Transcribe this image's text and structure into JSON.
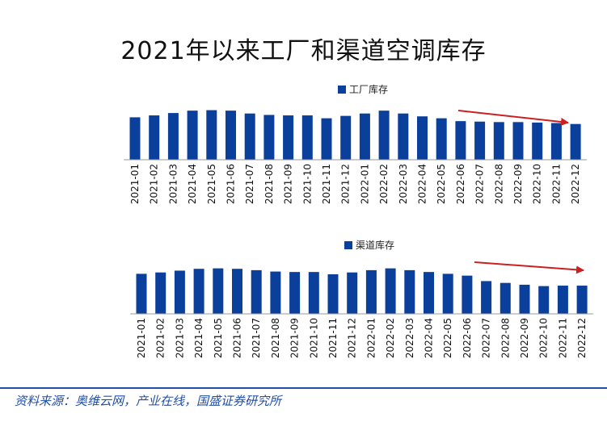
{
  "title": "2021年以来工厂和渠道空调库存",
  "source": "资料来源：奥维云网，产业在线，国盛证券研究所",
  "colors": {
    "bar": "#0b3f9c",
    "arrow": "#cc1f1f",
    "footer": "#1f4ea6"
  },
  "chart_data": [
    {
      "type": "bar",
      "title": "",
      "legend": [
        "工厂库存"
      ],
      "legend_position": "top-center",
      "grid": false,
      "categories": [
        "2021-01",
        "2021-02",
        "2021-03",
        "2021-04",
        "2021-05",
        "2021-06",
        "2021-07",
        "2021-08",
        "2021-09",
        "2021-10",
        "2021-11",
        "2021-12",
        "2022-01",
        "2022-02",
        "2022-03",
        "2022-04",
        "2022-05",
        "2022-06",
        "2022-07",
        "2022-08",
        "2022-09",
        "2022-10",
        "2022-11",
        "2022-12"
      ],
      "series": [
        {
          "name": "工厂库存",
          "values": [
            89,
            93,
            98,
            103,
            104,
            103,
            97,
            94,
            93,
            93,
            87,
            92,
            97,
            103,
            97,
            91,
            87,
            81,
            80,
            79,
            79,
            78,
            77,
            75
          ]
        }
      ],
      "ylim": [
        0,
        110
      ],
      "annotation": "downward trend arrow over 2022-06 to 2022-12"
    },
    {
      "type": "bar",
      "title": "",
      "legend": [
        "渠道库存"
      ],
      "legend_position": "top-center",
      "grid": false,
      "categories": [
        "2021-01",
        "2021-02",
        "2021-03",
        "2021-04",
        "2021-05",
        "2021-06",
        "2021-07",
        "2021-08",
        "2021-09",
        "2021-10",
        "2021-11",
        "2021-12",
        "2022-01",
        "2022-02",
        "2022-03",
        "2022-04",
        "2022-05",
        "2022-06",
        "2022-07",
        "2022-08",
        "2022-09",
        "2022-10",
        "2022-11",
        "2022-12"
      ],
      "series": [
        {
          "name": "渠道库存",
          "values": [
            88,
            91,
            95,
            99,
            100,
            99,
            96,
            93,
            92,
            92,
            87,
            91,
            96,
            100,
            96,
            92,
            88,
            84,
            72,
            68,
            64,
            61,
            62,
            62
          ]
        }
      ],
      "ylim": [
        0,
        110
      ],
      "annotation": "downward trend arrow over 2022-06 to 2022-12"
    }
  ]
}
